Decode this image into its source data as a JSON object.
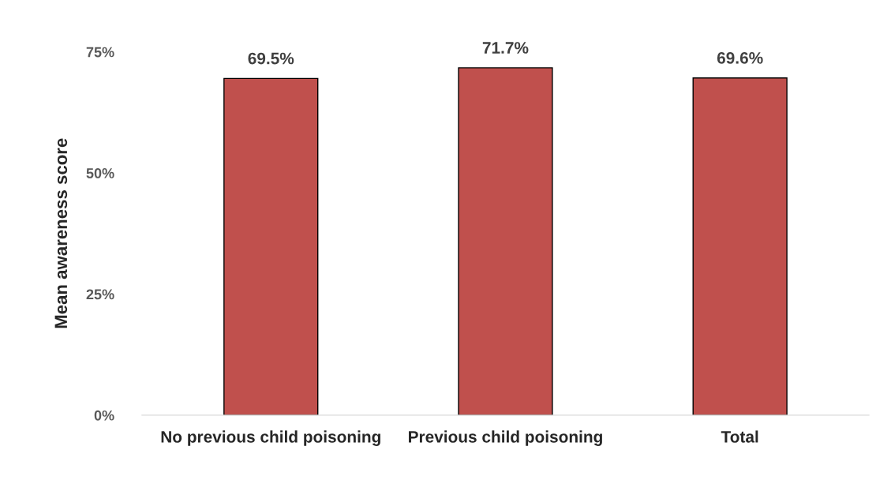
{
  "chart_data": {
    "type": "bar",
    "ylabel": "Mean awareness score",
    "categories": [
      "No previous child poisoning",
      "Previous child poisoning",
      "Total"
    ],
    "values": [
      69.5,
      71.7,
      69.6
    ],
    "value_labels": [
      "69.5%",
      "71.7%",
      "69.6%"
    ],
    "color": "#c0504d",
    "ylim": [
      0,
      75
    ],
    "yticks": [
      {
        "value": 0,
        "label": "0%"
      },
      {
        "value": 25,
        "label": "25%"
      },
      {
        "value": 50,
        "label": "50%"
      },
      {
        "value": 75,
        "label": "75%"
      }
    ],
    "grid": false
  }
}
